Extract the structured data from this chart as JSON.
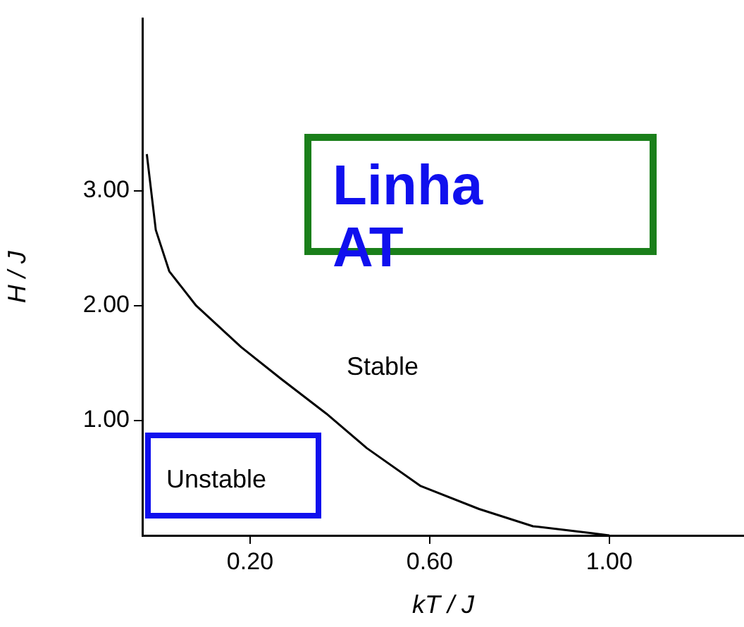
{
  "chart_data": {
    "type": "line",
    "xlabel": "kT / J",
    "ylabel": "H / J",
    "x": [
      -0.03,
      -0.01,
      0.02,
      0.08,
      0.18,
      0.27,
      0.37,
      0.46,
      0.58,
      0.71,
      0.83,
      0.96,
      1.0
    ],
    "series": [
      {
        "color": "#000000",
        "values": [
          3.32,
          2.66,
          2.3,
          2.0,
          1.64,
          1.36,
          1.06,
          0.76,
          0.43,
          0.23,
          0.08,
          0.02,
          0
        ]
      }
    ],
    "xlim": [
      -0.04,
      1.3
    ],
    "ylim": [
      0,
      4.5
    ],
    "xticks": [
      {
        "value": 0.2,
        "label": "0.20"
      },
      {
        "value": 0.6,
        "label": "0.60"
      },
      {
        "value": 1.0,
        "label": "1.00"
      }
    ],
    "yticks": [
      {
        "value": 1,
        "label": "1.00"
      },
      {
        "value": 2,
        "label": "2.00"
      },
      {
        "value": 3,
        "label": "3.00"
      }
    ],
    "marker": "none",
    "line_style": "solid",
    "legend": false,
    "annotations": [
      "Linha AT",
      "Stable",
      "Unstable"
    ]
  }
}
